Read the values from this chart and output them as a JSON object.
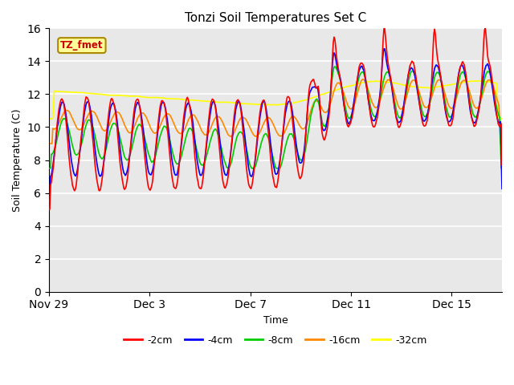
{
  "title": "Tonzi Soil Temperatures Set C",
  "xlabel": "Time",
  "ylabel": "Soil Temperature (C)",
  "ylim": [
    0,
    16
  ],
  "yticks": [
    0,
    2,
    4,
    6,
    8,
    10,
    12,
    14,
    16
  ],
  "bg_color": "#e8e8e8",
  "fig_bg": "#ffffff",
  "grid_color": "#ffffff",
  "legend_labels": [
    "-2cm",
    "-4cm",
    "-8cm",
    "-16cm",
    "-32cm"
  ],
  "legend_colors": [
    "#ff0000",
    "#0000ff",
    "#00cc00",
    "#ff8800",
    "#ffff00"
  ],
  "line_width": 1.2,
  "label_box_color": "#ffff99",
  "label_box_edge": "#aa8800",
  "label_text": "TZ_fmet",
  "label_text_color": "#cc0000",
  "xtick_labels": [
    "Nov 29",
    "Dec 3",
    "Dec 7",
    "Dec 11",
    "Dec 15"
  ],
  "xtick_days": [
    0,
    4,
    8,
    12,
    16
  ]
}
